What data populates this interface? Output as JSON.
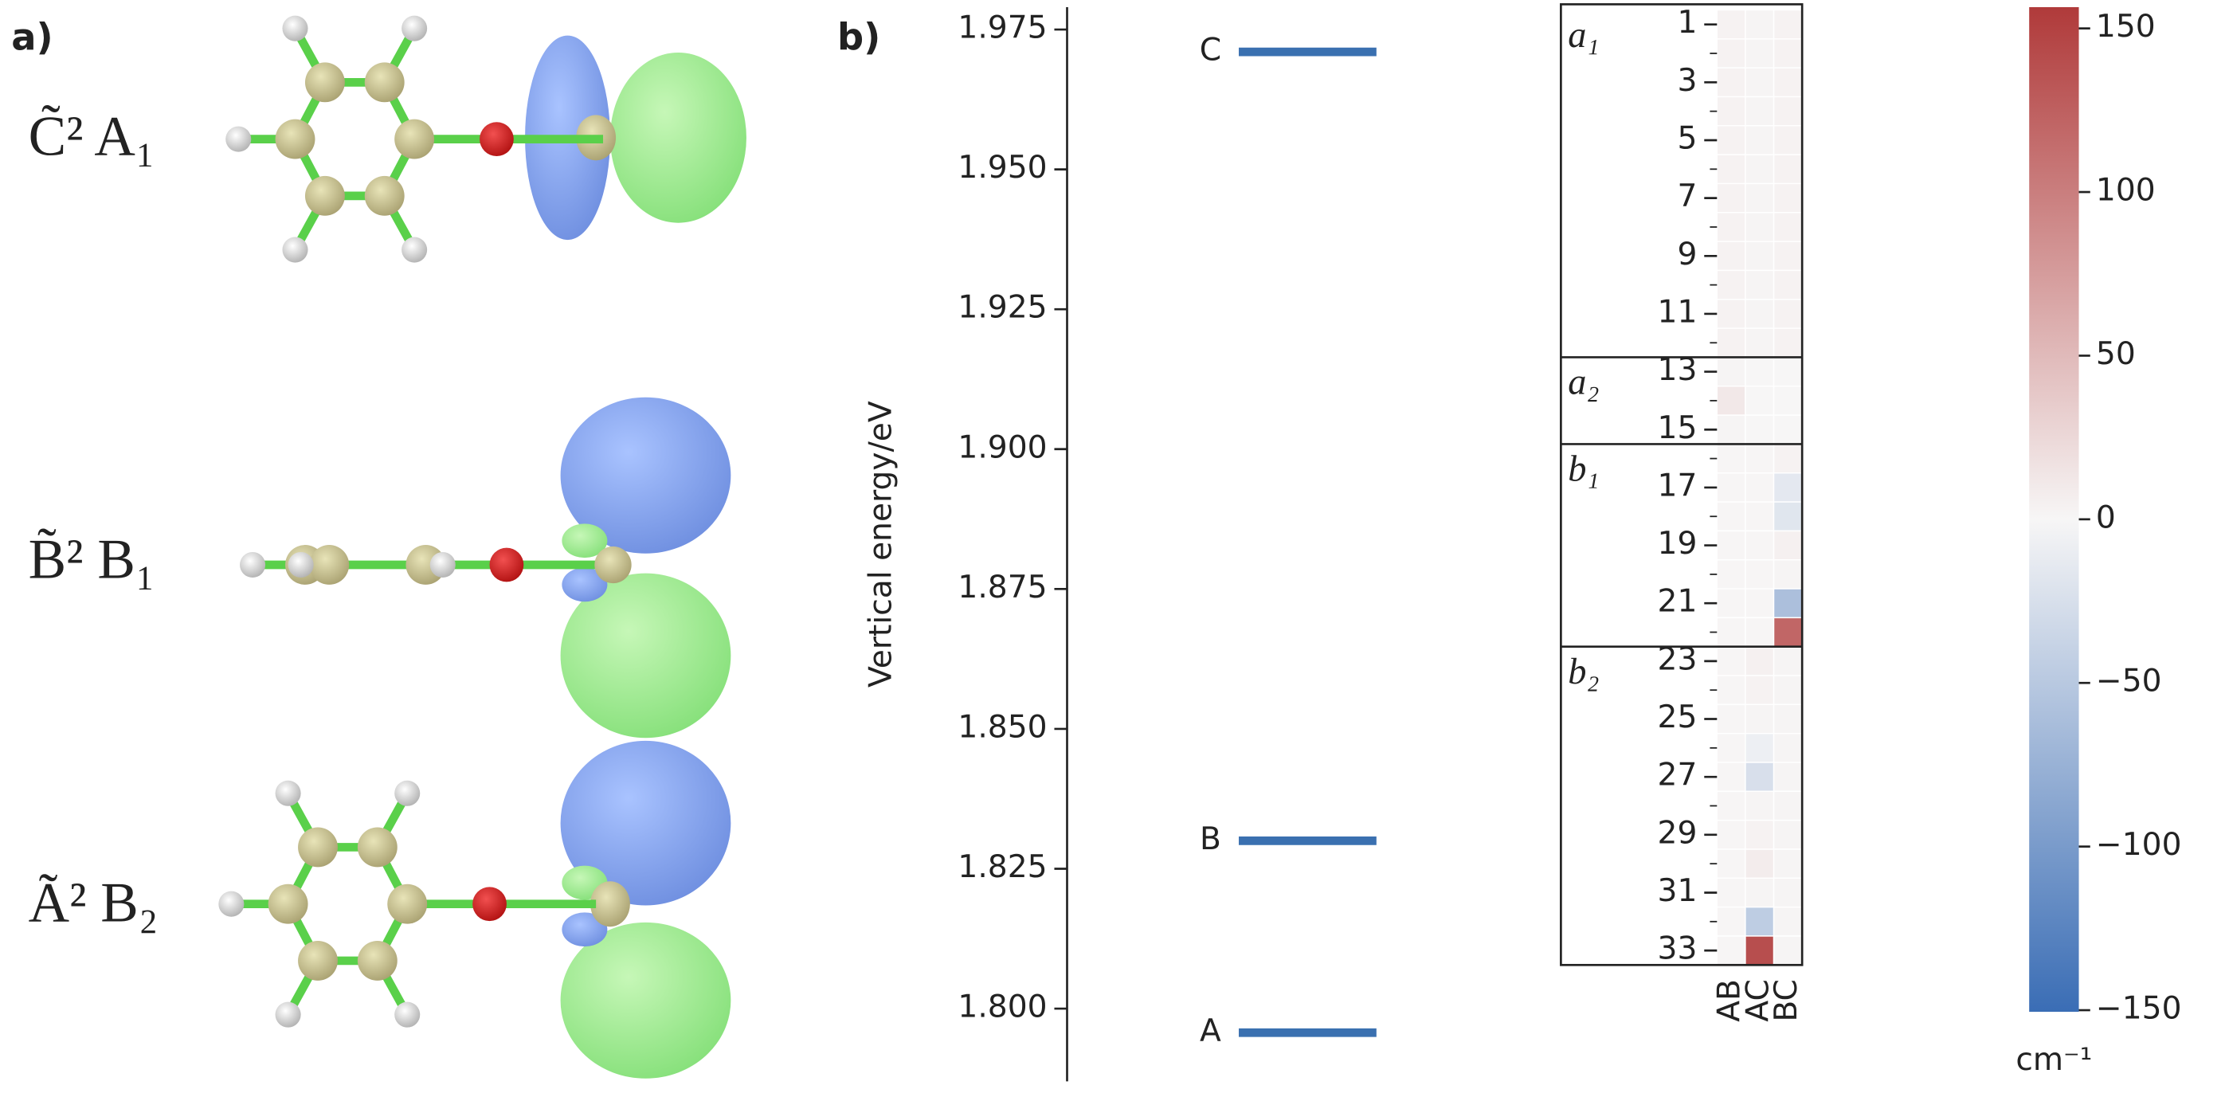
{
  "panel_labels": [
    "a)",
    "b)"
  ],
  "states": [
    "C̃² A₁",
    "B̃² B₁",
    "Ã² B₂"
  ],
  "chart_data": [
    {
      "type": "levels",
      "ylabel": "Vertical energy/eV",
      "categories": [
        "A",
        "B",
        "C"
      ],
      "values": [
        1.7957,
        1.83,
        1.971
      ],
      "color": "#3a70b0",
      "ylim": [
        1.787,
        1.979
      ],
      "yticks": [
        {
          "value": 1.8,
          "label": "1.800"
        },
        1.825,
        {
          "value": 1.85,
          "label": "1.850"
        },
        1.875,
        {
          "value": 1.9,
          "label": "1.900"
        },
        1.925,
        {
          "value": 1.95,
          "label": "1.950"
        },
        1.975
      ]
    },
    {
      "type": "heatmap",
      "categories": [
        1,
        null,
        3,
        null,
        5,
        null,
        7,
        null,
        9,
        null,
        11,
        null,
        13,
        null,
        15,
        null,
        17,
        null,
        19,
        null,
        21,
        null,
        23,
        null,
        25,
        null,
        27,
        null,
        29,
        null,
        31,
        null,
        33
      ],
      "groups": [
        {
          "label": "a₁",
          "first": 1,
          "last": 12
        },
        {
          "label": "a₂",
          "first": 13,
          "last": 15
        },
        {
          "label": "b₁",
          "first": 16,
          "last": 22
        },
        {
          "label": "b₂",
          "first": 23,
          "last": 33
        }
      ],
      "series": [
        {
          "name": "AB",
          "values": [
            3,
            3,
            3,
            3,
            3,
            3,
            3,
            3,
            3,
            3,
            3,
            3,
            2,
            12,
            2,
            1,
            1,
            1,
            1,
            1,
            1,
            1,
            1,
            1,
            1,
            1,
            1,
            1,
            1,
            1,
            1,
            1,
            1
          ]
        },
        {
          "name": "AC",
          "values": [
            2,
            2,
            2,
            2,
            2,
            2,
            2,
            2,
            2,
            2,
            2,
            2,
            0,
            0,
            0,
            1,
            1,
            1,
            1,
            1,
            1,
            1,
            5,
            3,
            2,
            -8,
            -25,
            2,
            3,
            8,
            2,
            -45,
            140
          ]
        },
        {
          "name": "BC",
          "values": [
            3,
            3,
            3,
            3,
            3,
            3,
            3,
            3,
            3,
            3,
            3,
            3,
            0,
            0,
            0,
            3,
            -15,
            -18,
            5,
            2,
            -60,
            120,
            2,
            2,
            2,
            2,
            2,
            2,
            2,
            2,
            2,
            2,
            2
          ]
        }
      ],
      "colors": [
        "#3a6db5",
        "#f7f6f6",
        "#b03a3a"
      ],
      "clim": [
        -150.5,
        156.5
      ],
      "cticks": [
        {
          "value": -150,
          "label": "−150"
        },
        {
          "value": -100,
          "label": "−100"
        },
        {
          "value": -50,
          "label": "−50"
        },
        0,
        50,
        100,
        150
      ],
      "clabel": "cm⁻¹"
    }
  ]
}
